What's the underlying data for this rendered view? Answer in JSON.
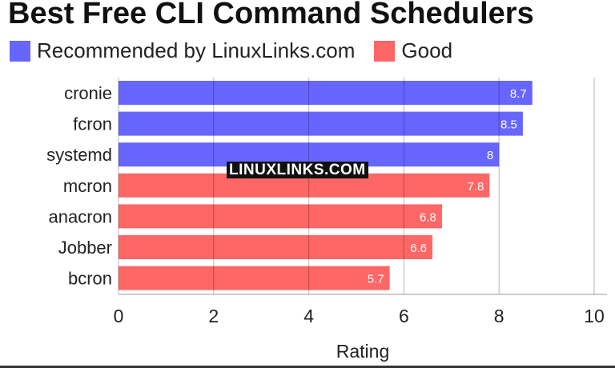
{
  "chart_data": {
    "type": "bar",
    "orientation": "horizontal",
    "title": "Best Free CLI Command Schedulers",
    "xlabel": "Rating",
    "ylabel": "",
    "xlim": [
      0,
      10
    ],
    "xticks": [
      0,
      2,
      4,
      6,
      8,
      10
    ],
    "grid": true,
    "legend_placement": "top-left",
    "legend": [
      {
        "name": "Recommended by LinuxLinks.com",
        "color": "#6666ff"
      },
      {
        "name": "Good",
        "color": "#ff6666"
      }
    ],
    "categories": [
      "cronie",
      "fcron",
      "systemd",
      "mcron",
      "anacron",
      "Jobber",
      "bcron"
    ],
    "values": [
      8.7,
      8.5,
      8,
      7.8,
      6.8,
      6.6,
      5.7
    ],
    "groups": [
      0,
      0,
      0,
      1,
      1,
      1,
      1
    ]
  },
  "watermark": "LINUXLINKS.COM"
}
